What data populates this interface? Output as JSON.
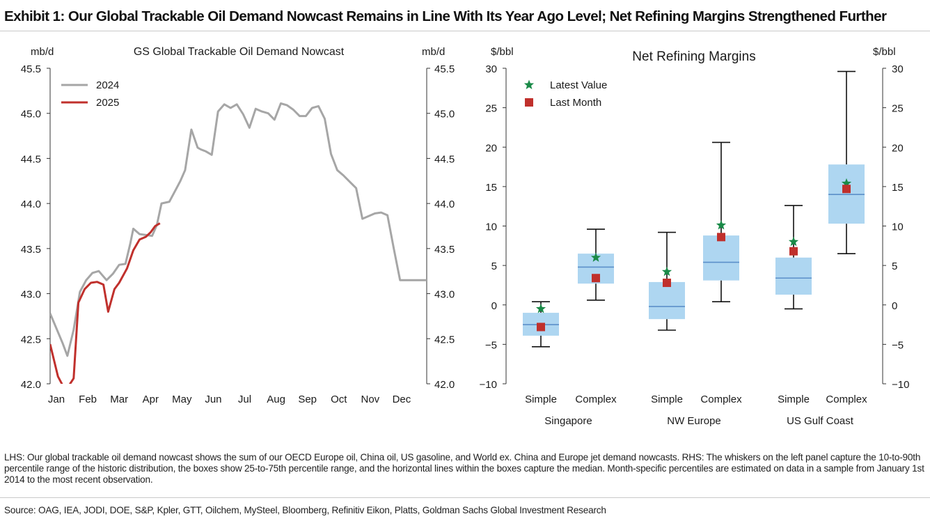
{
  "exhibit_title": "Exhibit 1: Our Global Trackable Oil Demand Nowcast Remains in Line With Its Year Ago Level; Net Refining Margins Strengthened Further",
  "footnote": "LHS: Our global trackable oil demand nowcast shows the sum of our OECD Europe oil, China oil, US gasoline, and World ex. China and Europe jet demand nowcasts. RHS: The whiskers on the left panel capture the 10-to-90th percentile range of the historic distribution, the boxes show 25-to-75th percentile range, and the horizontal lines within the boxes capture the median. Month-specific percentiles are estimated on data in a sample from January 1st 2014 to the most recent observation.",
  "source": "Source: OAG, IEA, JODI, DOE, S&P, Kpler, GTT, Oilchem, MySteel, Bloomberg, Refinitiv Eikon, Platts, Goldman Sachs Global Investment Research",
  "colors": {
    "series_2024": "#a6a6a6",
    "series_2025": "#c0302c",
    "box_fill": "#aed6f1",
    "median": "#5b8fc9",
    "latest": "#1a8a48",
    "last_month": "#c0302c"
  },
  "chart_data": [
    {
      "type": "line",
      "title": "GS Global Trackable Oil Demand Nowcast",
      "ylabel_left": "mb/d",
      "ylabel_right": "mb/d",
      "ylim": [
        42.0,
        45.5
      ],
      "yticks": [
        42.0,
        42.5,
        43.0,
        43.5,
        44.0,
        44.5,
        45.0,
        45.5
      ],
      "ytick_labels": [
        "42.0",
        "42.5",
        "43.0",
        "43.5",
        "44.0",
        "44.5",
        "45.0",
        "45.5"
      ],
      "xlim": [
        0,
        12
      ],
      "month_labels": [
        "Jan",
        "Feb",
        "Mar",
        "Apr",
        "May",
        "Jun",
        "Jul",
        "Aug",
        "Sep",
        "Oct",
        "Nov",
        "Dec"
      ],
      "legend_position": "top-left",
      "series": [
        {
          "name": "2024",
          "x": [
            0.0,
            0.4,
            0.55,
            0.75,
            0.95,
            1.15,
            1.35,
            1.55,
            1.8,
            2.0,
            2.2,
            2.4,
            2.55,
            2.65,
            2.85,
            3.05,
            3.25,
            3.4,
            3.55,
            3.8,
            4.0,
            4.15,
            4.3,
            4.5,
            4.7,
            4.8,
            4.95,
            5.15,
            5.35,
            5.55,
            5.75,
            5.95,
            6.15,
            6.35,
            6.55,
            6.75,
            6.95,
            7.15,
            7.35,
            7.55,
            7.75,
            7.95,
            8.15,
            8.35,
            8.55,
            8.75,
            8.95,
            9.15,
            9.35,
            9.55,
            9.75,
            9.95,
            10.15,
            10.35,
            10.55,
            10.75,
            10.95,
            11.15,
            11.35,
            11.45,
            11.65,
            11.85,
            12.0
          ],
          "values": [
            42.78,
            42.45,
            42.31,
            42.6,
            43.02,
            43.15,
            43.23,
            43.25,
            43.15,
            43.22,
            43.32,
            43.33,
            43.55,
            43.72,
            43.66,
            43.65,
            43.64,
            43.76,
            44.0,
            44.02,
            44.15,
            44.25,
            44.37,
            44.82,
            44.62,
            44.6,
            44.58,
            44.54,
            45.02,
            45.1,
            45.06,
            45.1,
            44.99,
            44.84,
            45.05,
            45.02,
            45.0,
            44.93,
            45.11,
            45.09,
            45.04,
            44.97,
            44.97,
            45.06,
            45.08,
            44.94,
            44.55,
            44.37,
            44.31,
            44.24,
            44.17,
            43.83,
            43.86,
            43.89,
            43.9,
            43.87,
            43.5,
            43.15,
            43.15,
            43.15,
            43.15,
            43.15,
            43.15
          ]
        },
        {
          "name": "2025",
          "x": [
            0.0,
            0.25,
            0.45,
            0.6,
            0.75,
            0.9,
            1.1,
            1.3,
            1.5,
            1.7,
            1.85,
            2.05,
            2.2,
            2.45,
            2.65,
            2.85,
            3.05,
            3.2,
            3.35,
            3.5
          ],
          "values": [
            42.44,
            42.08,
            41.95,
            41.98,
            42.06,
            42.9,
            43.05,
            43.12,
            43.13,
            43.1,
            42.8,
            43.05,
            43.12,
            43.28,
            43.48,
            43.6,
            43.63,
            43.68,
            43.75,
            43.78
          ]
        }
      ]
    },
    {
      "type": "box",
      "title": "Net Refining Margins",
      "ylabel_left": "$/bbl",
      "ylabel_right": "$/bbl",
      "ylim": [
        -10,
        30
      ],
      "yticks": [
        -10,
        -5,
        0,
        5,
        10,
        15,
        20,
        25,
        30
      ],
      "ytick_labels": [
        "−10",
        "−5",
        "0",
        "5",
        "10",
        "15",
        "20",
        "25",
        "30"
      ],
      "legend_position": "top-left",
      "legend": {
        "latest": "Latest Value",
        "last_month": "Last Month"
      },
      "groups": [
        "Singapore",
        "NW Europe",
        "US Gulf Coast"
      ],
      "categories": [
        "Simple",
        "Complex",
        "Simple",
        "Complex",
        "Simple",
        "Complex"
      ],
      "boxes": [
        {
          "group": "Singapore",
          "label": "Simple",
          "whisker_low": -5.3,
          "q1": -3.9,
          "median": -2.5,
          "q3": -1.0,
          "whisker_high": 0.4,
          "latest": -0.5,
          "last_month": -2.8
        },
        {
          "group": "Singapore",
          "label": "Complex",
          "whisker_low": 0.6,
          "q1": 2.7,
          "median": 4.8,
          "q3": 6.5,
          "whisker_high": 9.6,
          "latest": 6.0,
          "last_month": 3.4
        },
        {
          "group": "NW Europe",
          "label": "Simple",
          "whisker_low": -3.2,
          "q1": -1.8,
          "median": -0.2,
          "q3": 2.9,
          "whisker_high": 9.2,
          "latest": 4.2,
          "last_month": 2.8
        },
        {
          "group": "NW Europe",
          "label": "Complex",
          "whisker_low": 0.4,
          "q1": 3.1,
          "median": 5.4,
          "q3": 8.8,
          "whisker_high": 20.6,
          "latest": 10.1,
          "last_month": 8.6
        },
        {
          "group": "US Gulf Coast",
          "label": "Simple",
          "whisker_low": -0.5,
          "q1": 1.3,
          "median": 3.4,
          "q3": 6.0,
          "whisker_high": 12.6,
          "latest": 8.0,
          "last_month": 6.8
        },
        {
          "group": "US Gulf Coast",
          "label": "Complex",
          "whisker_low": 6.5,
          "q1": 10.3,
          "median": 14.0,
          "q3": 17.8,
          "whisker_high": 29.6,
          "latest": 15.4,
          "last_month": 14.7
        }
      ]
    }
  ]
}
